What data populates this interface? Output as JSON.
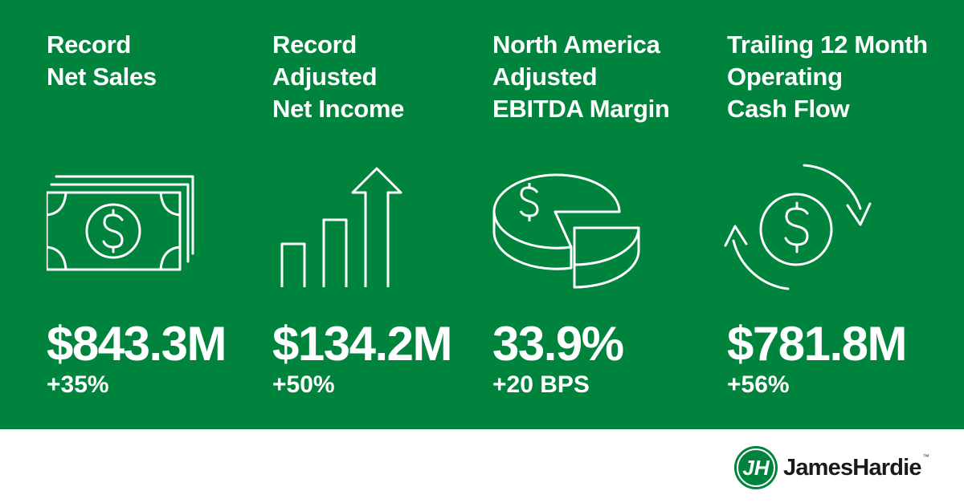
{
  "colors": {
    "brand_green": "#00843d",
    "text": "#ffffff",
    "background": "#ffffff",
    "logo_text": "#1a1a1a"
  },
  "metrics": [
    {
      "title_lines": [
        "Record",
        "Net Sales"
      ],
      "value": "$843.3M",
      "change": "+35%",
      "icon": "cash-bills-icon"
    },
    {
      "title_lines": [
        "Record",
        "Adjusted",
        "Net Income"
      ],
      "value": "$134.2M",
      "change": "+50%",
      "icon": "rising-bar-chart-icon"
    },
    {
      "title_lines": [
        "North America",
        "Adjusted",
        "EBITDA Margin"
      ],
      "value": "33.9%",
      "change": "+20 BPS",
      "icon": "pie-chart-dollar-icon"
    },
    {
      "title_lines": [
        "Trailing 12 Month",
        "Operating",
        "Cash Flow"
      ],
      "value": "$781.8M",
      "change": "+56%",
      "icon": "cash-cycle-icon"
    }
  ],
  "logo": {
    "text": "JamesHardie",
    "trademark": "™",
    "monogram": "JH"
  }
}
